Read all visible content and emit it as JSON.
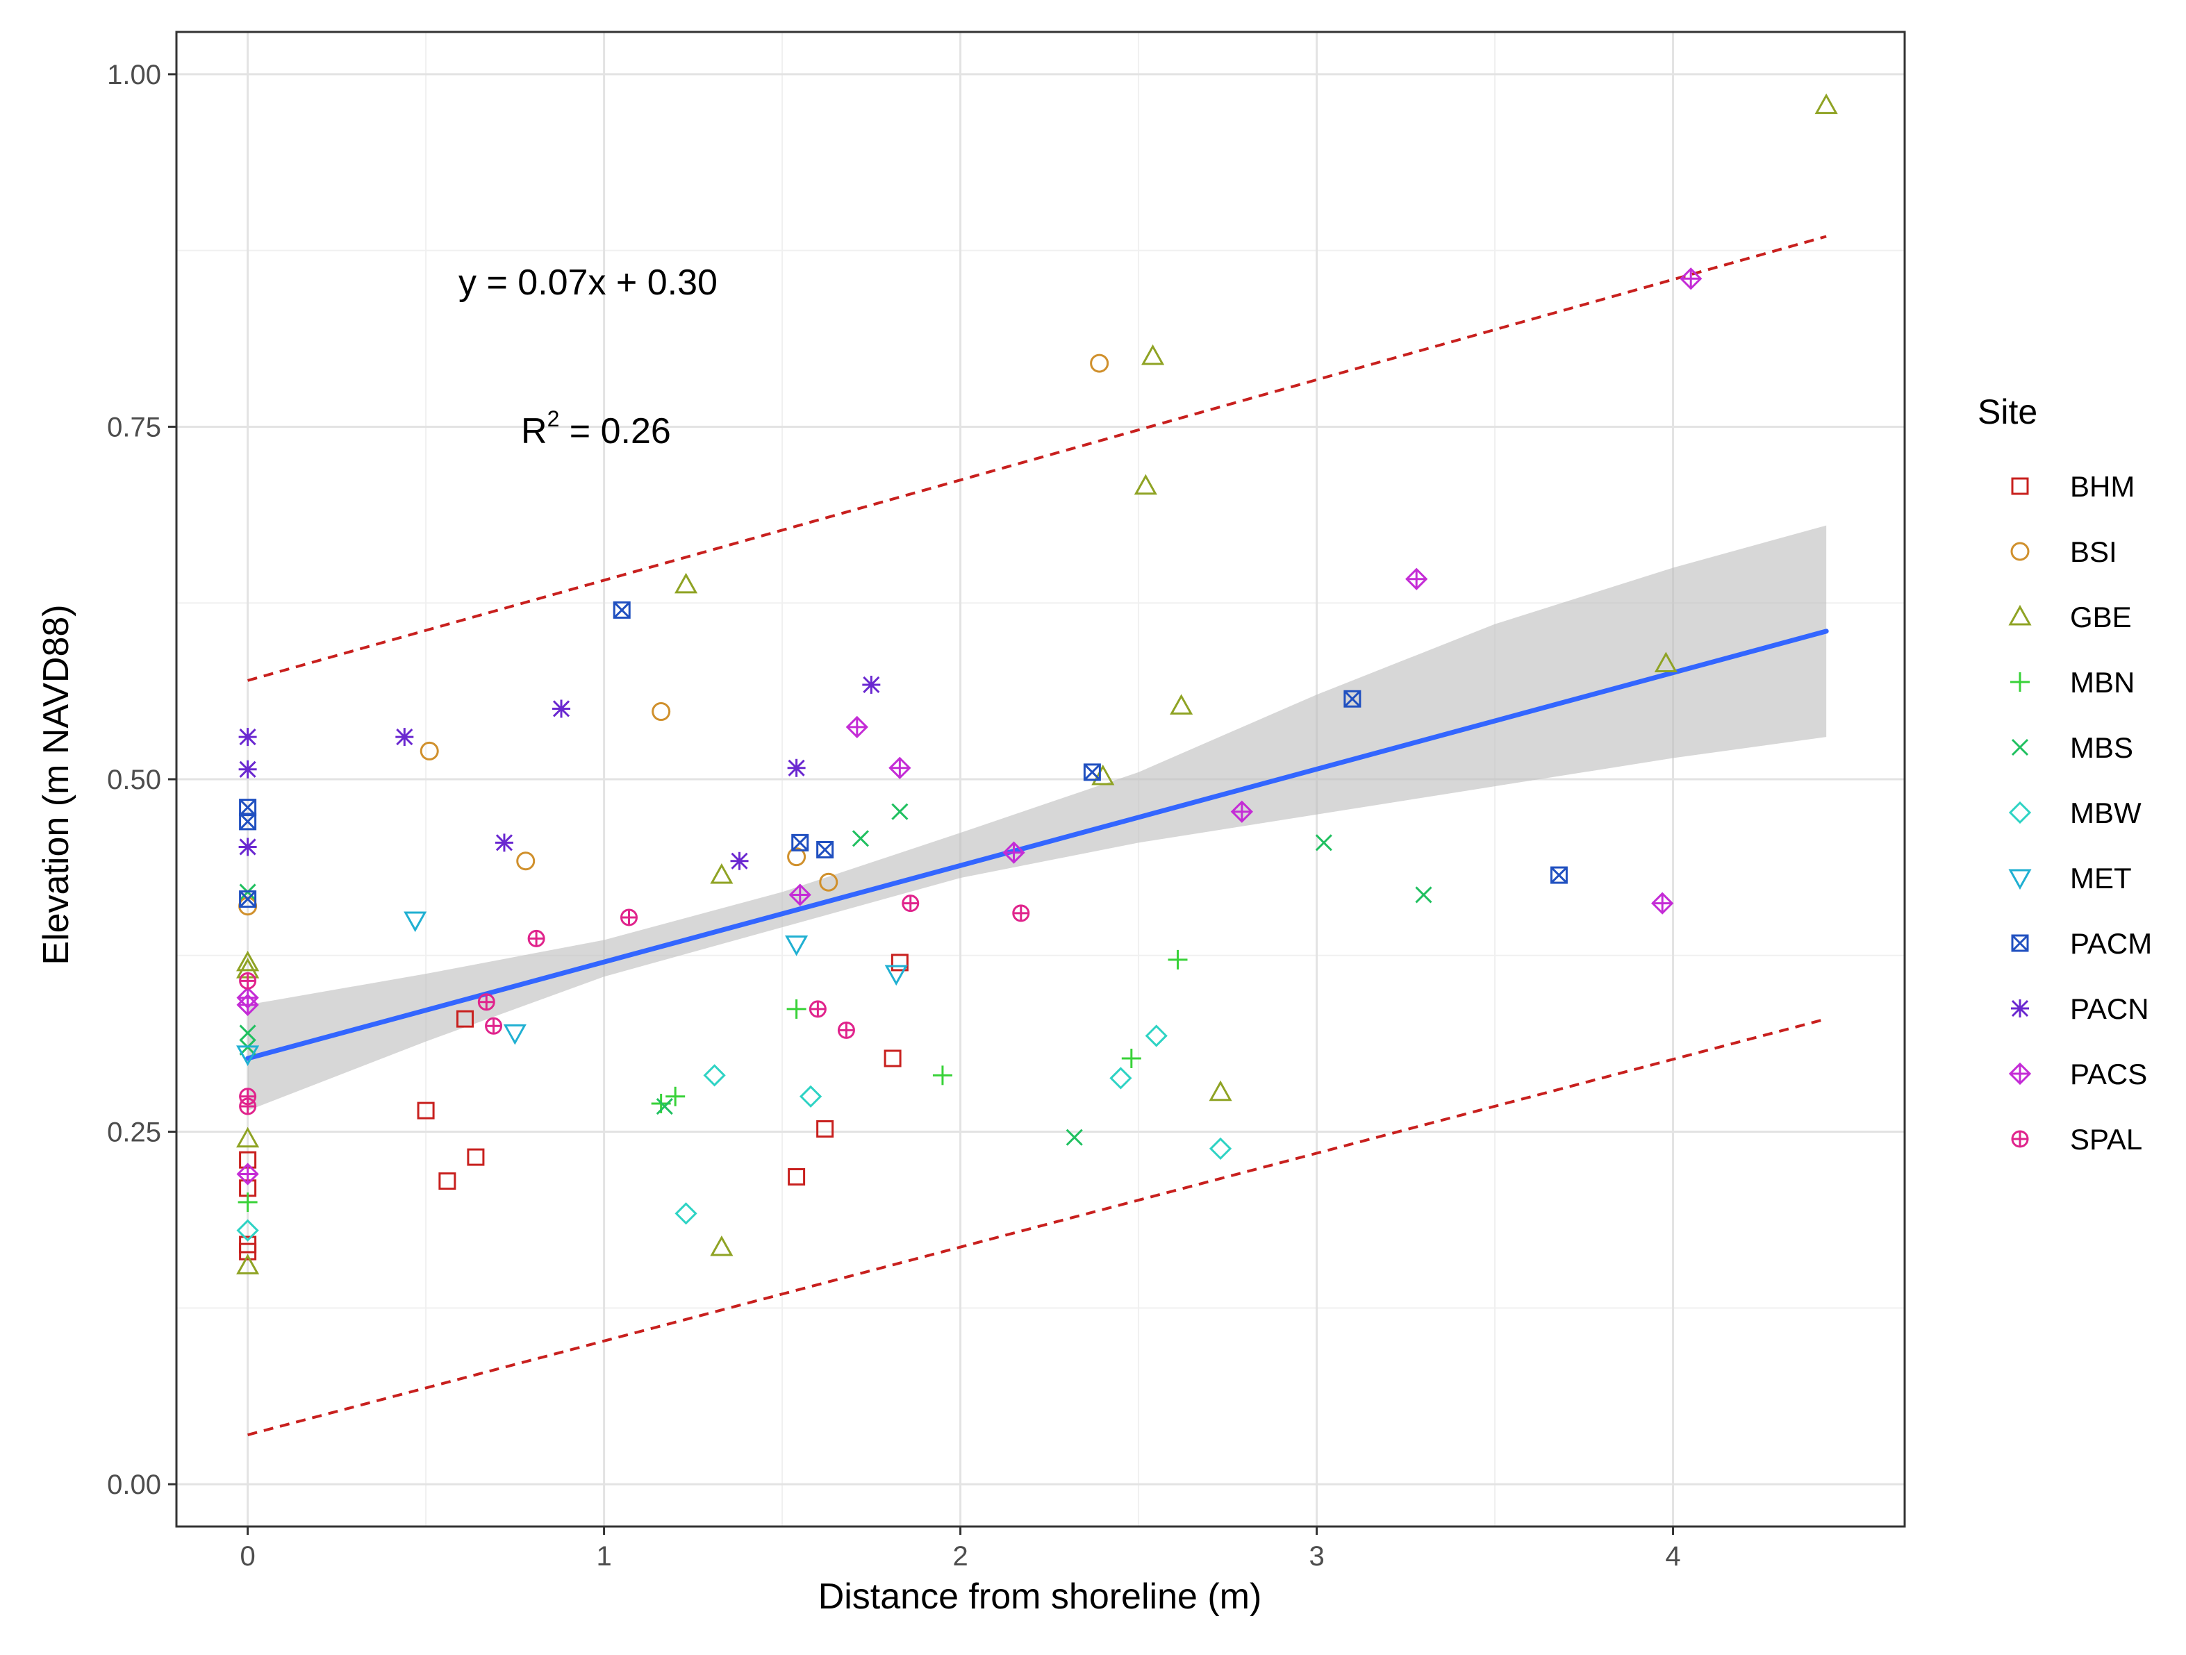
{
  "chart_data": {
    "type": "scatter",
    "title": "",
    "xlabel": "Distance from shoreline (m)",
    "ylabel": "Elevation (m NAVD88)",
    "xlim": [
      -0.2,
      4.65
    ],
    "ylim": [
      -0.03,
      1.03
    ],
    "x_ticks": [
      0,
      1,
      2,
      3,
      4
    ],
    "x_tick_labels": [
      "0",
      "1",
      "2",
      "3",
      "4"
    ],
    "y_ticks": [
      0,
      0.25,
      0.5,
      0.75,
      1.0
    ],
    "y_tick_labels": [
      "0.00",
      "0.25",
      "0.50",
      "0.75",
      "1.00"
    ],
    "grid": true,
    "annotations": {
      "equation": "y = 0.07x + 0.30",
      "r2_prefix": "R",
      "r2_sup": "2",
      "r2_suffix": " = 0.26"
    },
    "fit": {
      "x": [
        0,
        4.43
      ],
      "y": [
        0.302,
        0.605
      ],
      "color": "#3366ff"
    },
    "confidence_band": {
      "x": [
        0,
        0.5,
        1.0,
        1.5,
        2.0,
        2.5,
        3.0,
        3.5,
        4.0,
        4.43
      ],
      "lower": [
        0.265,
        0.314,
        0.36,
        0.395,
        0.43,
        0.455,
        0.475,
        0.495,
        0.515,
        0.53
      ],
      "upper": [
        0.34,
        0.362,
        0.386,
        0.42,
        0.462,
        0.505,
        0.56,
        0.61,
        0.65,
        0.68
      ],
      "color": "#bebebe"
    },
    "prediction_band": {
      "upper": {
        "x": [
          0,
          4.43
        ],
        "y": [
          0.57,
          0.885
        ]
      },
      "lower": {
        "x": [
          0,
          4.43
        ],
        "y": [
          0.035,
          0.33
        ]
      },
      "color": "#c8201e"
    },
    "legend_title": "Site",
    "legend_position": "right",
    "series": [
      {
        "name": "BHM",
        "color": "#c8201e",
        "shape": "square",
        "points": [
          [
            0,
            0.23
          ],
          [
            0,
            0.21
          ],
          [
            0,
            0.17
          ],
          [
            0,
            0.165
          ],
          [
            0.5,
            0.265
          ],
          [
            0.56,
            0.215
          ],
          [
            0.61,
            0.33
          ],
          [
            0.64,
            0.232
          ],
          [
            1.54,
            0.218
          ],
          [
            1.62,
            0.252
          ],
          [
            1.81,
            0.302
          ],
          [
            1.83,
            0.37
          ]
        ]
      },
      {
        "name": "BSI",
        "color": "#d0902c",
        "shape": "circle",
        "points": [
          [
            0,
            0.41
          ],
          [
            0.51,
            0.52
          ],
          [
            0.78,
            0.442
          ],
          [
            1.16,
            0.548
          ],
          [
            1.54,
            0.445
          ],
          [
            1.63,
            0.427
          ],
          [
            2.39,
            0.795
          ]
        ]
      },
      {
        "name": "GBE",
        "color": "#8fa324",
        "shape": "triangle",
        "points": [
          [
            0,
            0.37
          ],
          [
            0,
            0.365
          ],
          [
            0,
            0.245
          ],
          [
            0,
            0.155
          ],
          [
            1.23,
            0.638
          ],
          [
            1.33,
            0.432
          ],
          [
            1.33,
            0.168
          ],
          [
            2.4,
            0.502
          ],
          [
            2.52,
            0.708
          ],
          [
            2.54,
            0.8
          ],
          [
            2.62,
            0.552
          ],
          [
            2.73,
            0.278
          ],
          [
            3.98,
            0.582
          ],
          [
            4.43,
            0.978
          ]
        ]
      },
      {
        "name": "MBN",
        "color": "#38d238",
        "shape": "plus",
        "points": [
          [
            0,
            0.2
          ],
          [
            1.16,
            0.27
          ],
          [
            1.2,
            0.275
          ],
          [
            1.54,
            0.337
          ],
          [
            1.95,
            0.29
          ],
          [
            2.48,
            0.302
          ],
          [
            2.61,
            0.372
          ]
        ]
      },
      {
        "name": "MBS",
        "color": "#20c060",
        "shape": "cross",
        "points": [
          [
            0,
            0.42
          ],
          [
            0,
            0.32
          ],
          [
            0,
            0.31
          ],
          [
            1.17,
            0.268
          ],
          [
            1.72,
            0.458
          ],
          [
            1.83,
            0.477
          ],
          [
            2.32,
            0.246
          ],
          [
            3.02,
            0.455
          ],
          [
            3.3,
            0.418
          ]
        ]
      },
      {
        "name": "MBW",
        "color": "#2ed3c4",
        "shape": "diamond",
        "points": [
          [
            0,
            0.18
          ],
          [
            1.23,
            0.192
          ],
          [
            1.31,
            0.29
          ],
          [
            1.58,
            0.275
          ],
          [
            2.45,
            0.288
          ],
          [
            2.55,
            0.318
          ],
          [
            2.73,
            0.238
          ]
        ]
      },
      {
        "name": "MET",
        "color": "#20b0d2",
        "shape": "triangle-down",
        "points": [
          [
            0,
            0.305
          ],
          [
            0.47,
            0.4
          ],
          [
            0.75,
            0.32
          ],
          [
            1.54,
            0.383
          ],
          [
            1.82,
            0.362
          ]
        ]
      },
      {
        "name": "PACM",
        "color": "#2050c0",
        "shape": "square-x",
        "points": [
          [
            0,
            0.48
          ],
          [
            0,
            0.47
          ],
          [
            0,
            0.415
          ],
          [
            1.05,
            0.62
          ],
          [
            1.55,
            0.455
          ],
          [
            1.62,
            0.45
          ],
          [
            2.37,
            0.505
          ],
          [
            3.1,
            0.557
          ],
          [
            3.68,
            0.432
          ]
        ]
      },
      {
        "name": "PACN",
        "color": "#6a28d0",
        "shape": "asterisk",
        "points": [
          [
            0,
            0.53
          ],
          [
            0,
            0.507
          ],
          [
            0,
            0.452
          ],
          [
            0.44,
            0.53
          ],
          [
            0.72,
            0.455
          ],
          [
            0.88,
            0.55
          ],
          [
            1.38,
            0.442
          ],
          [
            1.54,
            0.508
          ],
          [
            1.75,
            0.567
          ]
        ]
      },
      {
        "name": "PACS",
        "color": "#c42cd6",
        "shape": "diamond-plus",
        "points": [
          [
            0,
            0.345
          ],
          [
            0,
            0.34
          ],
          [
            0,
            0.22
          ],
          [
            1.55,
            0.418
          ],
          [
            1.71,
            0.537
          ],
          [
            1.83,
            0.508
          ],
          [
            2.15,
            0.448
          ],
          [
            2.79,
            0.477
          ],
          [
            3.28,
            0.642
          ],
          [
            3.97,
            0.412
          ],
          [
            4.05,
            0.855
          ]
        ]
      },
      {
        "name": "SPAL",
        "color": "#e0248c",
        "shape": "circle-plus",
        "points": [
          [
            0,
            0.357
          ],
          [
            0,
            0.275
          ],
          [
            0,
            0.268
          ],
          [
            0.67,
            0.342
          ],
          [
            0.69,
            0.325
          ],
          [
            0.81,
            0.387
          ],
          [
            1.07,
            0.402
          ],
          [
            1.6,
            0.337
          ],
          [
            1.68,
            0.322
          ],
          [
            1.86,
            0.412
          ],
          [
            2.17,
            0.405
          ]
        ]
      }
    ]
  }
}
